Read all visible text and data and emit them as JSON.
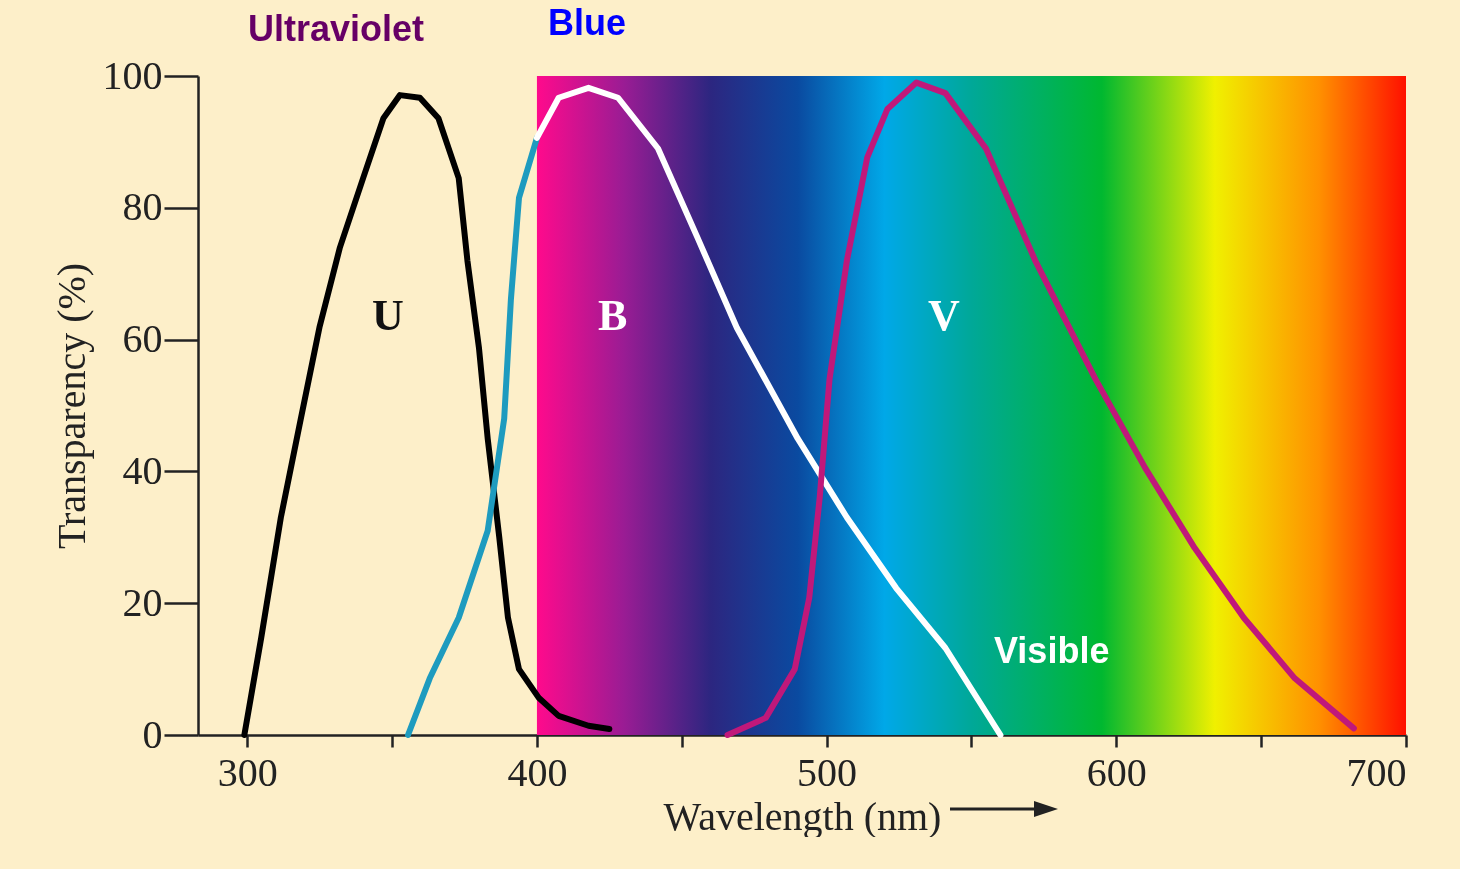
{
  "chart_data": {
    "type": "line",
    "xlabel": "Wavelength (nm)",
    "ylabel": "Transparency (%)",
    "xlim": [
      283,
      700
    ],
    "ylim": [
      0,
      100
    ],
    "xticks": [
      300,
      {
        "value": 350,
        "label": null
      },
      400,
      {
        "value": 450,
        "label": null
      },
      500,
      {
        "value": 550,
        "label": null
      },
      600,
      {
        "value": 650,
        "label": null
      },
      700
    ],
    "yticks": [
      0,
      20,
      40,
      60,
      80,
      100
    ],
    "grid": false,
    "marker": "none",
    "line_style": "solid",
    "bands": [
      {
        "axis": "x",
        "from": 400,
        "to": 700
      }
    ],
    "series": [
      {
        "color": "#000000",
        "x": [
          299,
          304.8,
          311.6,
          318.5,
          325,
          332,
          340,
          347,
          352.7,
          359.6,
          366,
          373,
          376,
          380,
          383,
          387,
          390,
          393.8,
          400.7,
          407.5,
          417.8,
          425
        ],
        "values": [
          0,
          14.7,
          33,
          48,
          62,
          74,
          84.5,
          93.6,
          97.1,
          96.7,
          93.6,
          84.5,
          72,
          58.7,
          45,
          30,
          17.8,
          10,
          5.6,
          2.9,
          1.4,
          0.9
        ]
      },
      {
        "color": "#1e9bbf",
        "x": [
          355.5,
          363,
          373,
          383,
          388.7,
          391,
          393.8,
          400
        ],
        "values": [
          0,
          8.6,
          17.8,
          31,
          48,
          66,
          81.5,
          90.6
        ]
      },
      {
        "color": "#ffffff",
        "x": [
          400,
          407.5,
          417.8,
          428,
          441.8,
          455.5,
          469,
          490,
          507,
          524,
          541,
          560
        ],
        "values": [
          90.6,
          96.7,
          98.2,
          96.7,
          89,
          75.4,
          61.8,
          45,
          33,
          22.3,
          13.2,
          0
        ]
      },
      {
        "color": "#c0187a",
        "x": [
          465.8,
          479,
          489,
          494,
          497.6,
          501,
          507,
          514,
          521,
          531,
          541,
          555,
          572,
          592.8,
          610,
          627,
          644,
          661.6,
          682
        ],
        "values": [
          0,
          2.6,
          10,
          20.8,
          36,
          54,
          72,
          87.6,
          95,
          99,
          97.4,
          89,
          72,
          54,
          40.5,
          28.4,
          17.8,
          8.6,
          1
        ]
      }
    ],
    "annotations": [
      "Ultraviolet",
      "Blue",
      "Visible",
      "U",
      "B",
      "V"
    ]
  }
}
